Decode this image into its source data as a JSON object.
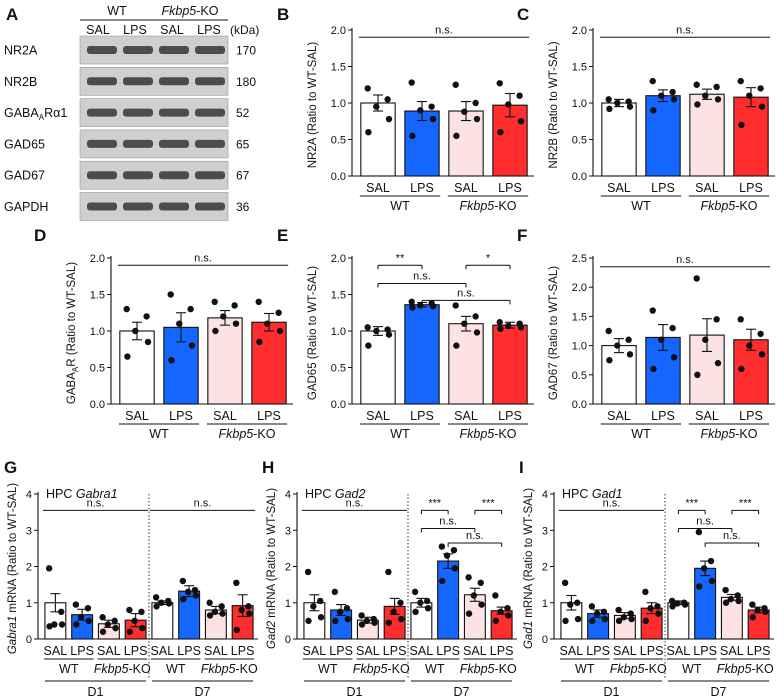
{
  "colors": {
    "WT_SAL": "#ffffff",
    "WT_LPS": "#1565ff",
    "KO_SAL": "#fde2e4",
    "KO_LPS": "#ff2d2d",
    "bar_stroke": "#111111"
  },
  "blot": {
    "panel_label": "A",
    "groups": [
      {
        "name": "WT",
        "italic": "",
        "suffix": ""
      },
      {
        "name": "",
        "italic": "Fkbp5",
        "suffix": "-KO"
      }
    ],
    "lanes": [
      "SAL",
      "LPS",
      "SAL",
      "LPS"
    ],
    "kda_label": "(kDa)",
    "rows": [
      {
        "protein": "NR2A",
        "kda": "170"
      },
      {
        "protein": "NR2B",
        "kda": "180"
      },
      {
        "protein": "GABA",
        "sub": "A",
        "tail": "Rα1",
        "kda": "52"
      },
      {
        "protein": "GAD65",
        "kda": "65"
      },
      {
        "protein": "GAD67",
        "kda": "67"
      },
      {
        "protein": "GAPDH",
        "kda": "36"
      }
    ]
  },
  "chart_data": [
    {
      "id": "B",
      "type": "bar",
      "ylabel": "NR2A (Ratio to WT-SAL)",
      "ylim": [
        0,
        2.0
      ],
      "yticks": [
        0.0,
        0.5,
        1.0,
        1.5,
        2.0
      ],
      "categories": [
        "SAL",
        "LPS",
        "SAL",
        "LPS"
      ],
      "groups": [
        "WT",
        "Fkbp5-KO"
      ],
      "values": [
        1.0,
        0.89,
        0.89,
        0.97
      ],
      "errors": [
        0.11,
        0.13,
        0.13,
        0.16
      ],
      "points": [
        [
          1.2,
          1.05,
          0.95,
          0.78,
          0.6
        ],
        [
          1.28,
          0.95,
          0.9,
          0.78,
          0.55
        ],
        [
          1.25,
          1.0,
          0.88,
          0.78,
          0.55
        ],
        [
          1.27,
          1.1,
          0.98,
          0.75,
          0.6
        ]
      ],
      "annotations": [
        {
          "from": 0,
          "to": 3,
          "y": 1.9,
          "text": "n.s."
        }
      ]
    },
    {
      "id": "C",
      "type": "bar",
      "ylabel": "NR2B (Ratio to WT-SAL)",
      "ylim": [
        0,
        2.0
      ],
      "yticks": [
        0.0,
        0.5,
        1.0,
        1.5,
        2.0
      ],
      "categories": [
        "SAL",
        "LPS",
        "SAL",
        "LPS"
      ],
      "groups": [
        "WT",
        "Fkbp5-KO"
      ],
      "values": [
        1.0,
        1.1,
        1.12,
        1.08
      ],
      "errors": [
        0.05,
        0.08,
        0.07,
        0.13
      ],
      "points": [
        [
          1.05,
          1.02,
          1.0,
          0.95,
          0.92
        ],
        [
          1.3,
          1.15,
          1.1,
          1.05,
          0.9
        ],
        [
          1.25,
          1.22,
          1.1,
          1.05,
          0.98
        ],
        [
          1.3,
          1.2,
          1.1,
          0.95,
          0.7
        ]
      ],
      "annotations": [
        {
          "from": 0,
          "to": 3,
          "y": 1.9,
          "text": "n.s."
        }
      ]
    },
    {
      "id": "D",
      "type": "bar",
      "ylabel": "GABA_AR (Ratio to WT-SAL)",
      "ylim": [
        0,
        2.0
      ],
      "yticks": [
        0.0,
        0.5,
        1.0,
        1.5,
        2.0
      ],
      "categories": [
        "SAL",
        "LPS",
        "SAL",
        "LPS"
      ],
      "groups": [
        "WT",
        "Fkbp5-KO"
      ],
      "values": [
        1.0,
        1.05,
        1.18,
        1.12
      ],
      "errors": [
        0.12,
        0.2,
        0.1,
        0.12
      ],
      "points": [
        [
          1.3,
          1.2,
          1.0,
          0.85,
          0.65
        ],
        [
          1.5,
          1.3,
          1.1,
          0.8,
          0.6
        ],
        [
          1.4,
          1.35,
          1.2,
          1.1,
          1.0
        ],
        [
          1.4,
          1.25,
          1.1,
          1.0,
          0.85
        ]
      ],
      "annotations": [
        {
          "from": 0,
          "to": 3,
          "y": 1.9,
          "text": "n.s."
        }
      ]
    },
    {
      "id": "E",
      "type": "bar",
      "ylabel": "GAD65 (Ratio to WT-SAL)",
      "ylim": [
        0,
        2.0
      ],
      "yticks": [
        0.0,
        0.5,
        1.0,
        1.5,
        2.0
      ],
      "categories": [
        "SAL",
        "LPS",
        "SAL",
        "LPS"
      ],
      "groups": [
        "WT",
        "Fkbp5-KO"
      ],
      "values": [
        1.0,
        1.36,
        1.1,
        1.08
      ],
      "errors": [
        0.06,
        0.03,
        0.1,
        0.04
      ],
      "points": [
        [
          1.05,
          1.02,
          1.0,
          0.95,
          0.8
        ],
        [
          1.4,
          1.38,
          1.35,
          1.34,
          1.32
        ],
        [
          1.35,
          1.2,
          1.1,
          0.98,
          0.8
        ],
        [
          1.12,
          1.1,
          1.07,
          1.05,
          1.03
        ]
      ],
      "annotations": [
        {
          "from": 0,
          "to": 1,
          "y": 1.9,
          "text": "**"
        },
        {
          "from": 2,
          "to": 3,
          "y": 1.9,
          "text": "*"
        },
        {
          "from": 0,
          "to": 2,
          "y": 1.65,
          "text": "n.s."
        },
        {
          "from": 1,
          "to": 3,
          "y": 1.42,
          "text": "n.s."
        }
      ]
    },
    {
      "id": "F",
      "type": "bar",
      "ylabel": "GAD67 (Ratio to WT-SAL)",
      "ylim": [
        0,
        2.5
      ],
      "yticks": [
        0.0,
        0.5,
        1.0,
        1.5,
        2.0,
        2.5
      ],
      "categories": [
        "SAL",
        "LPS",
        "SAL",
        "LPS"
      ],
      "groups": [
        "WT",
        "Fkbp5-KO"
      ],
      "values": [
        1.0,
        1.14,
        1.18,
        1.1
      ],
      "errors": [
        0.12,
        0.22,
        0.28,
        0.18
      ],
      "points": [
        [
          1.25,
          1.1,
          1.0,
          0.85,
          0.75
        ],
        [
          1.6,
          1.3,
          1.1,
          0.8,
          0.6
        ],
        [
          2.15,
          1.45,
          1.1,
          0.7,
          0.5
        ],
        [
          1.45,
          1.2,
          1.0,
          0.85,
          0.6
        ]
      ],
      "annotations": [
        {
          "from": 0,
          "to": 3,
          "y": 2.35,
          "text": "n.s."
        }
      ]
    },
    {
      "id": "G",
      "type": "bar",
      "ylabel": "Gabra1 mRNA (Ratio to WT-SAL)",
      "title": "HPC Gabra1",
      "ylim": [
        0,
        4
      ],
      "yticks": [
        0,
        1,
        2,
        3,
        4
      ],
      "categories": [
        "SAL",
        "LPS",
        "SAL",
        "LPS",
        "SAL",
        "LPS",
        "SAL",
        "LPS"
      ],
      "groups": [
        "WT",
        "Fkbp5-KO",
        "WT",
        "Fkbp5-KO"
      ],
      "days": [
        "D1",
        "D7"
      ],
      "values": [
        1.0,
        0.67,
        0.42,
        0.52,
        1.0,
        1.32,
        0.8,
        0.92
      ],
      "errors": [
        0.25,
        0.15,
        0.1,
        0.18,
        0.05,
        0.15,
        0.1,
        0.3
      ],
      "points": [
        [
          1.95,
          0.75,
          0.4,
          0.4,
          0.35
        ],
        [
          0.95,
          0.85,
          0.6,
          0.5,
          0.4
        ],
        [
          0.6,
          0.5,
          0.4,
          0.3,
          0.2
        ],
        [
          0.8,
          0.75,
          0.5,
          0.3,
          0.2
        ],
        [
          1.15,
          1.05,
          1.0,
          0.98,
          0.9
        ],
        [
          1.6,
          1.35,
          1.3,
          1.2,
          1.1
        ],
        [
          1.0,
          0.9,
          0.75,
          0.7,
          0.65
        ],
        [
          1.55,
          0.9,
          0.8,
          0.7,
          0.25
        ]
      ],
      "annotations": [
        {
          "from": 0,
          "to": 3,
          "y": 3.55,
          "text": "n.s."
        },
        {
          "from": 4,
          "to": 7,
          "y": 3.55,
          "text": "n.s."
        }
      ]
    },
    {
      "id": "H",
      "type": "bar",
      "ylabel": "Gad2 mRNA (Ratio to WT-SAL)",
      "title": "HPC Gad2",
      "ylim": [
        0,
        4
      ],
      "yticks": [
        0,
        1,
        2,
        3,
        4
      ],
      "categories": [
        "SAL",
        "LPS",
        "SAL",
        "LPS",
        "SAL",
        "LPS",
        "SAL",
        "LPS"
      ],
      "groups": [
        "WT",
        "Fkbp5-KO",
        "WT",
        "Fkbp5-KO"
      ],
      "days": [
        "D1",
        "D7"
      ],
      "values": [
        1.0,
        0.8,
        0.52,
        0.9,
        1.0,
        2.15,
        1.22,
        0.78
      ],
      "errors": [
        0.22,
        0.15,
        0.08,
        0.22,
        0.12,
        0.2,
        0.18,
        0.1
      ],
      "points": [
        [
          1.85,
          1.05,
          0.9,
          0.6,
          0.5
        ],
        [
          1.3,
          0.85,
          0.75,
          0.55,
          0.5
        ],
        [
          0.65,
          0.55,
          0.5,
          0.45,
          0.4
        ],
        [
          1.85,
          1.0,
          0.75,
          0.55,
          0.45
        ],
        [
          1.3,
          1.05,
          1.0,
          0.85,
          0.75
        ],
        [
          2.55,
          2.45,
          2.3,
          1.95,
          1.6
        ],
        [
          1.7,
          1.55,
          1.2,
          0.95,
          0.7
        ],
        [
          1.2,
          0.85,
          0.75,
          0.65,
          0.5
        ]
      ],
      "annotations": [
        {
          "from": 0,
          "to": 3,
          "y": 3.55,
          "text": "n.s."
        },
        {
          "from": 4,
          "to": 5,
          "y": 3.55,
          "text": "***"
        },
        {
          "from": 6,
          "to": 7,
          "y": 3.55,
          "text": "***"
        },
        {
          "from": 4,
          "to": 6,
          "y": 3.05,
          "text": "n.s."
        },
        {
          "from": 5,
          "to": 7,
          "y": 2.65,
          "text": "n.s."
        }
      ]
    },
    {
      "id": "I",
      "type": "bar",
      "ylabel": "Gad1 mRNA (Ratio to WT-SAL)",
      "title": "HPC Gad1",
      "ylim": [
        0,
        4
      ],
      "yticks": [
        0,
        1,
        2,
        3,
        4
      ],
      "categories": [
        "SAL",
        "LPS",
        "SAL",
        "LPS",
        "SAL",
        "LPS",
        "SAL",
        "LPS"
      ],
      "groups": [
        "WT",
        "Fkbp5-KO",
        "WT",
        "Fkbp5-KO"
      ],
      "days": [
        "D1",
        "D7"
      ],
      "values": [
        1.0,
        0.7,
        0.65,
        0.85,
        1.0,
        1.95,
        1.15,
        0.8
      ],
      "errors": [
        0.2,
        0.1,
        0.08,
        0.15,
        0.05,
        0.2,
        0.08,
        0.08
      ],
      "points": [
        [
          1.55,
          1.0,
          0.95,
          0.55,
          0.5
        ],
        [
          0.9,
          0.75,
          0.7,
          0.55,
          0.5
        ],
        [
          0.8,
          0.7,
          0.6,
          0.55,
          0.5
        ],
        [
          1.3,
          0.9,
          0.85,
          0.7,
          0.5
        ],
        [
          1.05,
          1.0,
          0.98,
          0.95,
          0.9
        ],
        [
          2.95,
          2.15,
          1.95,
          1.6,
          1.45
        ],
        [
          1.35,
          1.2,
          1.1,
          1.05,
          1.0
        ],
        [
          0.95,
          0.85,
          0.8,
          0.75,
          0.6
        ]
      ],
      "annotations": [
        {
          "from": 0,
          "to": 3,
          "y": 3.55,
          "text": "n.s."
        },
        {
          "from": 4,
          "to": 5,
          "y": 3.55,
          "text": "***"
        },
        {
          "from": 6,
          "to": 7,
          "y": 3.55,
          "text": "***"
        },
        {
          "from": 4,
          "to": 6,
          "y": 3.05,
          "text": "n.s."
        },
        {
          "from": 5,
          "to": 7,
          "y": 2.65,
          "text": "n.s."
        }
      ]
    }
  ]
}
